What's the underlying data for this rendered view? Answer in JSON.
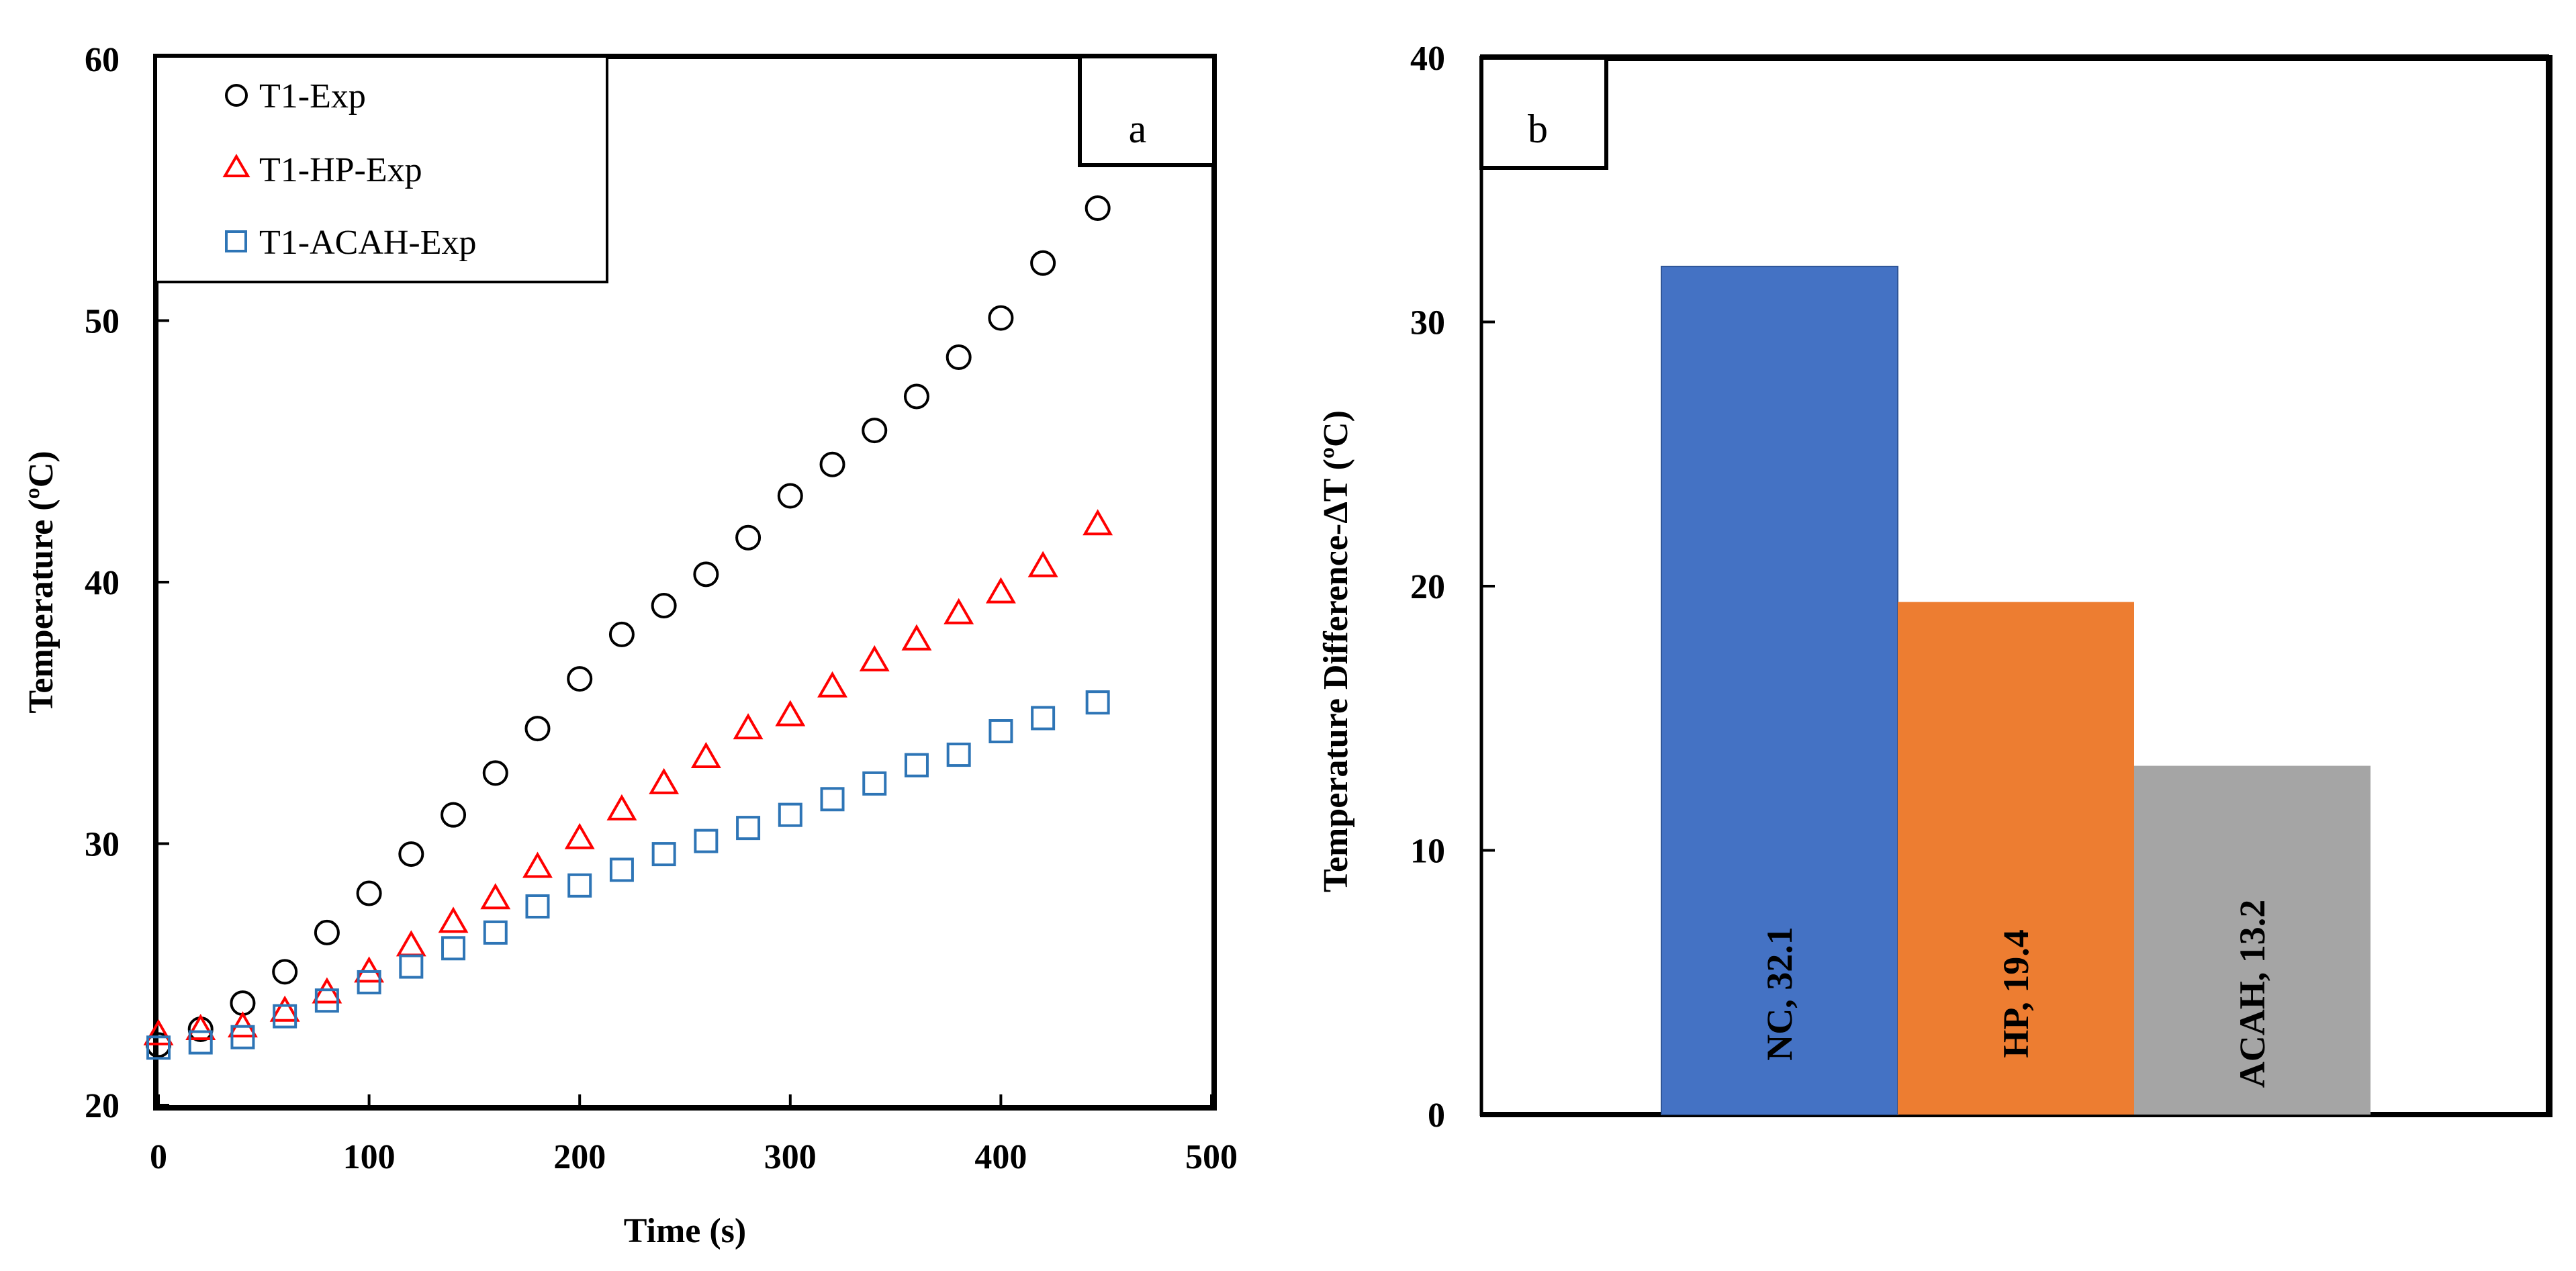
{
  "chart_data": [
    {
      "type": "scatter",
      "panel_label": "a",
      "xlabel": "Time (s)",
      "ylabel": "Temperature (ºC)",
      "xlim": [
        0,
        500
      ],
      "ylim": [
        20,
        60
      ],
      "xticks": [
        "0",
        "100",
        "200",
        "300",
        "400",
        "500"
      ],
      "yticks": [
        "20",
        "30",
        "40",
        "50",
        "60"
      ],
      "grid": false,
      "legend_position": "top-left",
      "series": [
        {
          "name": "T1-Exp",
          "marker": "circle",
          "color": "#000000",
          "x": [
            0,
            20,
            40,
            60,
            80,
            100,
            120,
            140,
            160,
            180,
            200,
            220,
            240,
            260,
            280,
            300,
            320,
            340,
            360,
            380,
            400,
            420,
            446
          ],
          "y": [
            22.3,
            22.9,
            23.9,
            25.1,
            26.6,
            28.1,
            29.6,
            31.1,
            32.7,
            34.4,
            36.3,
            38.0,
            39.1,
            40.3,
            41.7,
            43.3,
            44.5,
            45.8,
            47.1,
            48.6,
            50.1,
            52.2,
            54.3
          ]
        },
        {
          "name": "T1-HP-Exp",
          "marker": "triangle",
          "color": "#ff0000",
          "x": [
            0,
            20,
            40,
            60,
            80,
            100,
            120,
            140,
            160,
            180,
            200,
            220,
            240,
            260,
            280,
            300,
            320,
            340,
            360,
            380,
            400,
            420,
            446
          ],
          "y": [
            22.7,
            22.9,
            23.0,
            23.6,
            24.3,
            25.1,
            26.1,
            27.0,
            27.9,
            29.1,
            30.2,
            31.3,
            32.3,
            33.3,
            34.4,
            34.9,
            36.0,
            37.0,
            37.8,
            38.8,
            39.6,
            40.6,
            42.2
          ]
        },
        {
          "name": "T1-ACAH-Exp",
          "marker": "square",
          "color": "#2e75b6",
          "x": [
            0,
            20,
            40,
            60,
            80,
            100,
            120,
            140,
            160,
            180,
            200,
            220,
            240,
            260,
            280,
            300,
            320,
            340,
            360,
            380,
            400,
            420,
            446
          ],
          "y": [
            22.2,
            22.4,
            22.6,
            23.4,
            24.0,
            24.7,
            25.3,
            26.0,
            26.6,
            27.6,
            28.4,
            29.0,
            29.6,
            30.1,
            30.6,
            31.1,
            31.7,
            32.3,
            33.0,
            33.4,
            34.3,
            34.8,
            35.4
          ]
        }
      ]
    },
    {
      "type": "bar",
      "panel_label": "b",
      "xlabel": "",
      "ylabel": "Temperature  Difference-ΔT (ºC)",
      "ylim": [
        0,
        40
      ],
      "yticks": [
        "0",
        "10",
        "20",
        "30",
        "40"
      ],
      "grid": false,
      "categories": [
        "NC",
        "HP",
        "ACAH"
      ],
      "values": [
        32.1,
        19.4,
        13.2
      ],
      "data_labels": [
        "NC, 32.1",
        "HP, 19.4",
        "ACAH, 13.2"
      ],
      "colors": [
        "#4472c4",
        "#ed7d31",
        "#a5a5a5"
      ]
    }
  ]
}
